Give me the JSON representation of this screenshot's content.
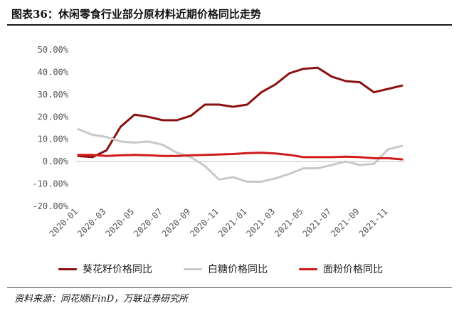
{
  "title": "图表36：休闲零食行业部分原材料近期价格同比走势",
  "source": "资料来源：同花顺iFinD，万联证券研究所",
  "chart_data": {
    "type": "line",
    "x": [
      "2020-01",
      "2020-02",
      "2020-03",
      "2020-04",
      "2020-05",
      "2020-06",
      "2020-07",
      "2020-08",
      "2020-09",
      "2020-10",
      "2020-11",
      "2020-12",
      "2021-01",
      "2021-02",
      "2021-03",
      "2021-04",
      "2021-05",
      "2021-06",
      "2021-07",
      "2021-08",
      "2021-09",
      "2021-10",
      "2021-11",
      "2021-12"
    ],
    "x_tick_labels": [
      "2020-01",
      "2020-03",
      "2020-05",
      "2020-07",
      "2020-09",
      "2020-11",
      "2021-01",
      "2021-03",
      "2021-05",
      "2021-07",
      "2021-09",
      "2021-11"
    ],
    "ylim": [
      -20,
      50
    ],
    "y_ticks": [
      "50.00%",
      "40.00%",
      "30.00%",
      "20.00%",
      "10.00%",
      "0.00%",
      "-10.00%",
      "-20.00%"
    ],
    "grid": false,
    "legend_position": "bottom",
    "series": [
      {
        "name": "葵花籽价格同比",
        "color": "#8b1010",
        "values": [
          2.5,
          2.0,
          5.0,
          15.5,
          21.0,
          20.0,
          18.5,
          18.5,
          20.5,
          25.5,
          25.5,
          24.5,
          25.5,
          31.0,
          34.5,
          39.5,
          41.5,
          42.0,
          38.0,
          36.0,
          35.5,
          31.0,
          32.5,
          34.0
        ]
      },
      {
        "name": "白糖价格同比",
        "color": "#c8c8c8",
        "values": [
          14.5,
          12.0,
          11.0,
          9.0,
          8.5,
          9.0,
          7.5,
          4.0,
          2.0,
          -2.0,
          -8.0,
          -7.0,
          -9.0,
          -9.0,
          -7.5,
          -5.5,
          -3.0,
          -3.0,
          -1.5,
          0.0,
          -1.5,
          -1.0,
          5.5,
          7.0
        ]
      },
      {
        "name": "面粉价格同比",
        "color": "#d11a1a",
        "values": [
          3.0,
          3.0,
          2.5,
          2.8,
          3.0,
          2.8,
          2.5,
          2.5,
          2.8,
          3.0,
          3.2,
          3.4,
          3.8,
          4.0,
          3.6,
          3.0,
          2.0,
          2.0,
          2.0,
          2.2,
          2.0,
          1.5,
          1.5,
          1.0
        ]
      }
    ]
  }
}
